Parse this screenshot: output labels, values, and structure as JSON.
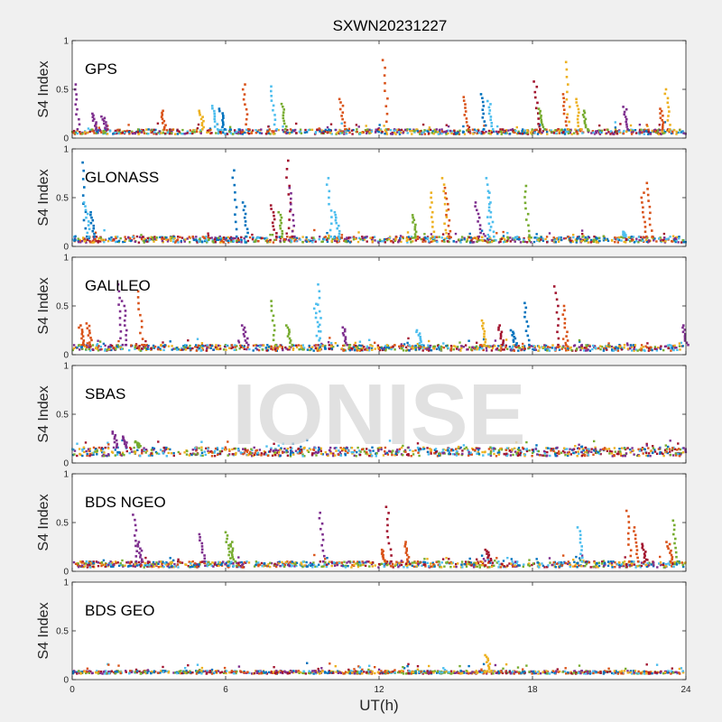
{
  "chart_data": {
    "type": "scatter",
    "title": "SXWN20231227",
    "xlabel": "UT(h)",
    "ylabel": "S4 Index",
    "xlim": [
      0,
      24
    ],
    "ylim": [
      0,
      1
    ],
    "xticks": [
      "0",
      "6",
      "12",
      "18",
      "24"
    ],
    "yticks": [
      "0",
      "0.5",
      "1"
    ],
    "watermark": "IONISE",
    "colors": [
      "#0072BD",
      "#D95319",
      "#EDB120",
      "#7E2F8E",
      "#77AC30",
      "#4DBEEE",
      "#A2142F"
    ],
    "panels": [
      {
        "name": "GPS",
        "baseline": [
          0.04,
          0.09
        ],
        "spikes": [
          {
            "x": 0.1,
            "y": 0.55,
            "c": 3
          },
          {
            "x": 0.8,
            "y": 0.25,
            "c": 3
          },
          {
            "x": 1.2,
            "y": 0.22,
            "c": 3
          },
          {
            "x": 3.5,
            "y": 0.28,
            "c": 1
          },
          {
            "x": 5.0,
            "y": 0.28,
            "c": 2
          },
          {
            "x": 5.5,
            "y": 0.33,
            "c": 5
          },
          {
            "x": 5.8,
            "y": 0.3,
            "c": 0
          },
          {
            "x": 6.7,
            "y": 0.55,
            "c": 1
          },
          {
            "x": 7.8,
            "y": 0.53,
            "c": 5
          },
          {
            "x": 8.2,
            "y": 0.35,
            "c": 4
          },
          {
            "x": 10.5,
            "y": 0.4,
            "c": 1
          },
          {
            "x": 12.2,
            "y": 0.8,
            "c": 1
          },
          {
            "x": 15.3,
            "y": 0.42,
            "c": 1
          },
          {
            "x": 16.0,
            "y": 0.45,
            "c": 0
          },
          {
            "x": 16.3,
            "y": 0.38,
            "c": 5
          },
          {
            "x": 18.1,
            "y": 0.58,
            "c": 6
          },
          {
            "x": 18.3,
            "y": 0.3,
            "c": 4
          },
          {
            "x": 19.2,
            "y": 0.45,
            "c": 1
          },
          {
            "x": 19.3,
            "y": 0.78,
            "c": 2
          },
          {
            "x": 19.7,
            "y": 0.4,
            "c": 2
          },
          {
            "x": 20.0,
            "y": 0.28,
            "c": 4
          },
          {
            "x": 21.6,
            "y": 0.32,
            "c": 3
          },
          {
            "x": 23.0,
            "y": 0.3,
            "c": 1
          },
          {
            "x": 23.2,
            "y": 0.5,
            "c": 2
          }
        ]
      },
      {
        "name": "GLONASS",
        "baseline": [
          0.04,
          0.1
        ],
        "spikes": [
          {
            "x": 0.4,
            "y": 0.86,
            "c": 0
          },
          {
            "x": 0.5,
            "y": 0.45,
            "c": 5
          },
          {
            "x": 0.7,
            "y": 0.35,
            "c": 0
          },
          {
            "x": 6.3,
            "y": 0.78,
            "c": 0
          },
          {
            "x": 6.7,
            "y": 0.45,
            "c": 0
          },
          {
            "x": 7.8,
            "y": 0.42,
            "c": 6
          },
          {
            "x": 8.1,
            "y": 0.35,
            "c": 4
          },
          {
            "x": 8.4,
            "y": 0.88,
            "c": 6
          },
          {
            "x": 8.5,
            "y": 0.6,
            "c": 3
          },
          {
            "x": 10.0,
            "y": 0.7,
            "c": 5
          },
          {
            "x": 10.3,
            "y": 0.35,
            "c": 5
          },
          {
            "x": 13.3,
            "y": 0.32,
            "c": 4
          },
          {
            "x": 14.0,
            "y": 0.55,
            "c": 2
          },
          {
            "x": 14.5,
            "y": 0.7,
            "c": 2
          },
          {
            "x": 14.6,
            "y": 0.6,
            "c": 1
          },
          {
            "x": 15.8,
            "y": 0.45,
            "c": 3
          },
          {
            "x": 16.2,
            "y": 0.7,
            "c": 5
          },
          {
            "x": 16.3,
            "y": 0.55,
            "c": 5
          },
          {
            "x": 17.7,
            "y": 0.62,
            "c": 4
          },
          {
            "x": 22.3,
            "y": 0.55,
            "c": 1
          },
          {
            "x": 22.5,
            "y": 0.65,
            "c": 1
          },
          {
            "x": 21.5,
            "y": 0.15,
            "c": 5
          }
        ]
      },
      {
        "name": "GALILEO",
        "baseline": [
          0.04,
          0.1
        ],
        "spikes": [
          {
            "x": 0.3,
            "y": 0.3,
            "c": 1
          },
          {
            "x": 0.6,
            "y": 0.32,
            "c": 1
          },
          {
            "x": 1.8,
            "y": 0.72,
            "c": 3
          },
          {
            "x": 2.0,
            "y": 0.55,
            "c": 3
          },
          {
            "x": 2.6,
            "y": 0.65,
            "c": 1
          },
          {
            "x": 7.8,
            "y": 0.55,
            "c": 4
          },
          {
            "x": 6.7,
            "y": 0.3,
            "c": 3
          },
          {
            "x": 8.4,
            "y": 0.3,
            "c": 4
          },
          {
            "x": 9.6,
            "y": 0.72,
            "c": 5
          },
          {
            "x": 9.5,
            "y": 0.52,
            "c": 5
          },
          {
            "x": 10.6,
            "y": 0.28,
            "c": 3
          },
          {
            "x": 13.5,
            "y": 0.25,
            "c": 5
          },
          {
            "x": 16.0,
            "y": 0.35,
            "c": 2
          },
          {
            "x": 16.7,
            "y": 0.3,
            "c": 6
          },
          {
            "x": 17.2,
            "y": 0.25,
            "c": 0
          },
          {
            "x": 17.7,
            "y": 0.53,
            "c": 0
          },
          {
            "x": 18.9,
            "y": 0.7,
            "c": 6
          },
          {
            "x": 19.2,
            "y": 0.5,
            "c": 1
          },
          {
            "x": 23.9,
            "y": 0.3,
            "c": 3
          }
        ]
      },
      {
        "name": "SBAS",
        "baseline": [
          0.07,
          0.16
        ],
        "spikes": [
          {
            "x": 1.6,
            "y": 0.32,
            "c": 3
          },
          {
            "x": 2.0,
            "y": 0.27,
            "c": 3
          },
          {
            "x": 2.5,
            "y": 0.22,
            "c": 4
          }
        ]
      },
      {
        "name": "BDS NGEO",
        "baseline": [
          0.04,
          0.1
        ],
        "spikes": [
          {
            "x": 2.4,
            "y": 0.58,
            "c": 3
          },
          {
            "x": 2.6,
            "y": 0.3,
            "c": 3
          },
          {
            "x": 5.0,
            "y": 0.38,
            "c": 3
          },
          {
            "x": 6.0,
            "y": 0.4,
            "c": 4
          },
          {
            "x": 6.2,
            "y": 0.3,
            "c": 4
          },
          {
            "x": 9.7,
            "y": 0.6,
            "c": 3
          },
          {
            "x": 12.3,
            "y": 0.66,
            "c": 6
          },
          {
            "x": 12.1,
            "y": 0.22,
            "c": 1
          },
          {
            "x": 13.0,
            "y": 0.3,
            "c": 1
          },
          {
            "x": 16.2,
            "y": 0.22,
            "c": 6
          },
          {
            "x": 19.8,
            "y": 0.45,
            "c": 5
          },
          {
            "x": 21.7,
            "y": 0.62,
            "c": 1
          },
          {
            "x": 22.0,
            "y": 0.45,
            "c": 1
          },
          {
            "x": 22.3,
            "y": 0.28,
            "c": 6
          },
          {
            "x": 23.5,
            "y": 0.52,
            "c": 4
          },
          {
            "x": 23.3,
            "y": 0.3,
            "c": 1
          }
        ]
      },
      {
        "name": "BDS GEO",
        "baseline": [
          0.06,
          0.09
        ],
        "spikes": [
          {
            "x": 16.2,
            "y": 0.25,
            "c": 2
          }
        ]
      }
    ]
  }
}
